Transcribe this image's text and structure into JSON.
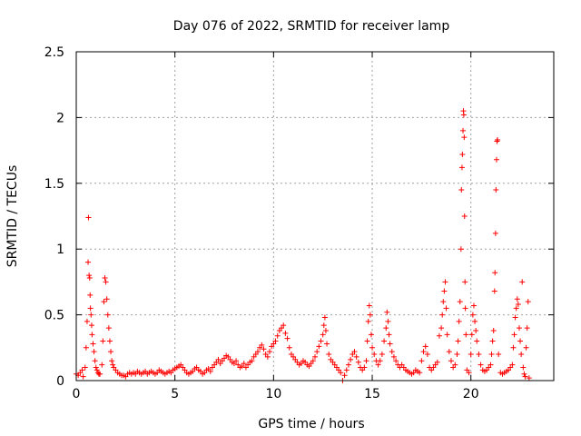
{
  "chart_data": {
    "type": "scatter",
    "title": "Day 076 of 2022, SRMTID for receiver lamp",
    "xlabel": "GPS time / hours",
    "ylabel": "SRMTID / TECUs",
    "xlim": [
      0,
      24.2
    ],
    "ylim": [
      0,
      2.5
    ],
    "xticks": [
      0,
      5,
      10,
      15,
      20
    ],
    "xtick_labels": [
      "0",
      "5",
      "10",
      "15",
      "20"
    ],
    "yticks": [
      0,
      0.5,
      1,
      1.5,
      2,
      2.5
    ],
    "ytick_labels": [
      "0",
      "0.5",
      "1",
      "1.5",
      "2",
      "2.5"
    ],
    "grid": true,
    "marker": "+",
    "series_color": "#ff0000",
    "series": [
      {
        "name": "SRMTID",
        "points": [
          [
            0.0,
            0.05
          ],
          [
            0.1,
            0.04
          ],
          [
            0.2,
            0.06
          ],
          [
            0.3,
            0.08
          ],
          [
            0.35,
            0.03
          ],
          [
            0.45,
            0.1
          ],
          [
            0.5,
            0.25
          ],
          [
            0.55,
            0.45
          ],
          [
            0.6,
            0.9
          ],
          [
            0.62,
            1.24
          ],
          [
            0.65,
            0.8
          ],
          [
            0.68,
            0.78
          ],
          [
            0.7,
            0.65
          ],
          [
            0.72,
            0.55
          ],
          [
            0.75,
            0.5
          ],
          [
            0.78,
            0.42
          ],
          [
            0.8,
            0.35
          ],
          [
            0.85,
            0.28
          ],
          [
            0.9,
            0.22
          ],
          [
            0.95,
            0.15
          ],
          [
            1.0,
            0.1
          ],
          [
            1.05,
            0.08
          ],
          [
            1.1,
            0.06
          ],
          [
            1.15,
            0.05
          ],
          [
            1.2,
            0.05
          ],
          [
            1.3,
            0.12
          ],
          [
            1.35,
            0.3
          ],
          [
            1.4,
            0.6
          ],
          [
            1.45,
            0.78
          ],
          [
            1.5,
            0.75
          ],
          [
            1.55,
            0.62
          ],
          [
            1.6,
            0.5
          ],
          [
            1.65,
            0.4
          ],
          [
            1.7,
            0.3
          ],
          [
            1.75,
            0.22
          ],
          [
            1.8,
            0.15
          ],
          [
            1.85,
            0.12
          ],
          [
            1.9,
            0.1
          ],
          [
            2.0,
            0.08
          ],
          [
            2.1,
            0.06
          ],
          [
            2.2,
            0.05
          ],
          [
            2.3,
            0.04
          ],
          [
            2.4,
            0.04
          ],
          [
            2.5,
            0.03
          ],
          [
            2.6,
            0.05
          ],
          [
            2.7,
            0.06
          ],
          [
            2.8,
            0.05
          ],
          [
            2.9,
            0.06
          ],
          [
            3.0,
            0.05
          ],
          [
            3.1,
            0.07
          ],
          [
            3.2,
            0.06
          ],
          [
            3.3,
            0.05
          ],
          [
            3.4,
            0.06
          ],
          [
            3.5,
            0.07
          ],
          [
            3.6,
            0.05
          ],
          [
            3.7,
            0.06
          ],
          [
            3.8,
            0.07
          ],
          [
            3.9,
            0.06
          ],
          [
            4.0,
            0.05
          ],
          [
            4.1,
            0.06
          ],
          [
            4.2,
            0.08
          ],
          [
            4.3,
            0.07
          ],
          [
            4.4,
            0.06
          ],
          [
            4.5,
            0.05
          ],
          [
            4.6,
            0.06
          ],
          [
            4.7,
            0.07
          ],
          [
            4.8,
            0.06
          ],
          [
            4.9,
            0.08
          ],
          [
            5.0,
            0.09
          ],
          [
            5.1,
            0.1
          ],
          [
            5.2,
            0.11
          ],
          [
            5.3,
            0.12
          ],
          [
            5.4,
            0.1
          ],
          [
            5.5,
            0.08
          ],
          [
            5.6,
            0.06
          ],
          [
            5.7,
            0.05
          ],
          [
            5.8,
            0.06
          ],
          [
            5.9,
            0.07
          ],
          [
            6.0,
            0.09
          ],
          [
            6.1,
            0.1
          ],
          [
            6.2,
            0.08
          ],
          [
            6.3,
            0.07
          ],
          [
            6.4,
            0.05
          ],
          [
            6.5,
            0.06
          ],
          [
            6.6,
            0.08
          ],
          [
            6.7,
            0.09
          ],
          [
            6.8,
            0.07
          ],
          [
            6.9,
            0.1
          ],
          [
            7.0,
            0.12
          ],
          [
            7.1,
            0.14
          ],
          [
            7.2,
            0.16
          ],
          [
            7.3,
            0.13
          ],
          [
            7.4,
            0.15
          ],
          [
            7.5,
            0.17
          ],
          [
            7.6,
            0.19
          ],
          [
            7.7,
            0.18
          ],
          [
            7.8,
            0.16
          ],
          [
            7.9,
            0.14
          ],
          [
            8.0,
            0.13
          ],
          [
            8.1,
            0.15
          ],
          [
            8.2,
            0.12
          ],
          [
            8.3,
            0.1
          ],
          [
            8.4,
            0.11
          ],
          [
            8.5,
            0.13
          ],
          [
            8.6,
            0.1
          ],
          [
            8.7,
            0.12
          ],
          [
            8.8,
            0.14
          ],
          [
            8.9,
            0.15
          ],
          [
            9.0,
            0.18
          ],
          [
            9.1,
            0.2
          ],
          [
            9.2,
            0.22
          ],
          [
            9.3,
            0.25
          ],
          [
            9.4,
            0.27
          ],
          [
            9.5,
            0.24
          ],
          [
            9.6,
            0.2
          ],
          [
            9.7,
            0.18
          ],
          [
            9.8,
            0.22
          ],
          [
            9.9,
            0.26
          ],
          [
            10.0,
            0.28
          ],
          [
            10.1,
            0.3
          ],
          [
            10.2,
            0.34
          ],
          [
            10.3,
            0.38
          ],
          [
            10.4,
            0.4
          ],
          [
            10.5,
            0.42
          ],
          [
            10.6,
            0.36
          ],
          [
            10.7,
            0.32
          ],
          [
            10.8,
            0.25
          ],
          [
            10.9,
            0.2
          ],
          [
            11.0,
            0.18
          ],
          [
            11.1,
            0.16
          ],
          [
            11.2,
            0.14
          ],
          [
            11.3,
            0.12
          ],
          [
            11.4,
            0.13
          ],
          [
            11.5,
            0.15
          ],
          [
            11.6,
            0.14
          ],
          [
            11.7,
            0.12
          ],
          [
            11.8,
            0.11
          ],
          [
            11.9,
            0.13
          ],
          [
            12.0,
            0.15
          ],
          [
            12.1,
            0.18
          ],
          [
            12.2,
            0.22
          ],
          [
            12.3,
            0.26
          ],
          [
            12.4,
            0.3
          ],
          [
            12.5,
            0.35
          ],
          [
            12.55,
            0.42
          ],
          [
            12.6,
            0.48
          ],
          [
            12.65,
            0.38
          ],
          [
            12.7,
            0.28
          ],
          [
            12.8,
            0.2
          ],
          [
            12.9,
            0.16
          ],
          [
            13.0,
            0.14
          ],
          [
            13.1,
            0.12
          ],
          [
            13.2,
            0.1
          ],
          [
            13.3,
            0.08
          ],
          [
            13.4,
            0.06
          ],
          [
            13.5,
            0.0
          ],
          [
            13.6,
            0.04
          ],
          [
            13.7,
            0.08
          ],
          [
            13.8,
            0.12
          ],
          [
            13.9,
            0.16
          ],
          [
            14.0,
            0.2
          ],
          [
            14.1,
            0.22
          ],
          [
            14.2,
            0.18
          ],
          [
            14.3,
            0.14
          ],
          [
            14.4,
            0.1
          ],
          [
            14.5,
            0.08
          ],
          [
            14.6,
            0.1
          ],
          [
            14.7,
            0.15
          ],
          [
            14.75,
            0.3
          ],
          [
            14.8,
            0.45
          ],
          [
            14.85,
            0.57
          ],
          [
            14.9,
            0.5
          ],
          [
            14.95,
            0.35
          ],
          [
            15.0,
            0.25
          ],
          [
            15.1,
            0.2
          ],
          [
            15.2,
            0.15
          ],
          [
            15.3,
            0.12
          ],
          [
            15.4,
            0.15
          ],
          [
            15.5,
            0.2
          ],
          [
            15.6,
            0.3
          ],
          [
            15.7,
            0.4
          ],
          [
            15.75,
            0.52
          ],
          [
            15.8,
            0.45
          ],
          [
            15.85,
            0.35
          ],
          [
            15.9,
            0.28
          ],
          [
            16.0,
            0.22
          ],
          [
            16.1,
            0.18
          ],
          [
            16.2,
            0.15
          ],
          [
            16.3,
            0.12
          ],
          [
            16.4,
            0.1
          ],
          [
            16.5,
            0.12
          ],
          [
            16.6,
            0.1
          ],
          [
            16.7,
            0.08
          ],
          [
            16.8,
            0.07
          ],
          [
            16.9,
            0.06
          ],
          [
            17.0,
            0.05
          ],
          [
            17.1,
            0.06
          ],
          [
            17.2,
            0.08
          ],
          [
            17.3,
            0.07
          ],
          [
            17.4,
            0.06
          ],
          [
            17.5,
            0.15
          ],
          [
            17.6,
            0.22
          ],
          [
            17.7,
            0.26
          ],
          [
            17.8,
            0.2
          ],
          [
            17.9,
            0.1
          ],
          [
            18.0,
            0.08
          ],
          [
            18.1,
            0.1
          ],
          [
            18.2,
            0.12
          ],
          [
            18.3,
            0.14
          ],
          [
            18.4,
            0.34
          ],
          [
            18.5,
            0.4
          ],
          [
            18.55,
            0.5
          ],
          [
            18.6,
            0.6
          ],
          [
            18.65,
            0.68
          ],
          [
            18.7,
            0.75
          ],
          [
            18.75,
            0.55
          ],
          [
            18.8,
            0.35
          ],
          [
            18.9,
            0.22
          ],
          [
            19.0,
            0.15
          ],
          [
            19.1,
            0.1
          ],
          [
            19.2,
            0.12
          ],
          [
            19.3,
            0.2
          ],
          [
            19.35,
            0.3
          ],
          [
            19.4,
            0.45
          ],
          [
            19.45,
            0.6
          ],
          [
            19.5,
            1.0
          ],
          [
            19.52,
            1.45
          ],
          [
            19.55,
            1.62
          ],
          [
            19.57,
            1.72
          ],
          [
            19.6,
            1.9
          ],
          [
            19.62,
            2.05
          ],
          [
            19.64,
            2.02
          ],
          [
            19.66,
            1.85
          ],
          [
            19.68,
            1.25
          ],
          [
            19.7,
            0.75
          ],
          [
            19.72,
            0.55
          ],
          [
            19.75,
            0.35
          ],
          [
            19.8,
            0.08
          ],
          [
            19.9,
            0.06
          ],
          [
            20.0,
            0.2
          ],
          [
            20.05,
            0.35
          ],
          [
            20.1,
            0.5
          ],
          [
            20.15,
            0.57
          ],
          [
            20.2,
            0.45
          ],
          [
            20.25,
            0.38
          ],
          [
            20.3,
            0.3
          ],
          [
            20.4,
            0.2
          ],
          [
            20.5,
            0.12
          ],
          [
            20.6,
            0.08
          ],
          [
            20.7,
            0.07
          ],
          [
            20.8,
            0.08
          ],
          [
            20.9,
            0.1
          ],
          [
            21.0,
            0.12
          ],
          [
            21.05,
            0.2
          ],
          [
            21.1,
            0.3
          ],
          [
            21.15,
            0.38
          ],
          [
            21.2,
            0.68
          ],
          [
            21.22,
            0.82
          ],
          [
            21.25,
            1.12
          ],
          [
            21.27,
            1.45
          ],
          [
            21.3,
            1.68
          ],
          [
            21.32,
            1.82
          ],
          [
            21.35,
            1.83
          ],
          [
            21.4,
            0.2
          ],
          [
            21.5,
            0.06
          ],
          [
            21.6,
            0.05
          ],
          [
            21.7,
            0.06
          ],
          [
            21.8,
            0.07
          ],
          [
            21.9,
            0.08
          ],
          [
            22.0,
            0.1
          ],
          [
            22.1,
            0.12
          ],
          [
            22.15,
            0.25
          ],
          [
            22.2,
            0.35
          ],
          [
            22.25,
            0.48
          ],
          [
            22.3,
            0.55
          ],
          [
            22.35,
            0.62
          ],
          [
            22.4,
            0.58
          ],
          [
            22.45,
            0.4
          ],
          [
            22.5,
            0.3
          ],
          [
            22.55,
            0.2
          ],
          [
            22.6,
            0.75
          ],
          [
            22.65,
            0.1
          ],
          [
            22.7,
            0.05
          ],
          [
            22.75,
            0.03
          ],
          [
            22.8,
            0.25
          ],
          [
            22.85,
            0.4
          ],
          [
            22.9,
            0.6
          ],
          [
            22.95,
            0.02
          ]
        ]
      }
    ]
  }
}
